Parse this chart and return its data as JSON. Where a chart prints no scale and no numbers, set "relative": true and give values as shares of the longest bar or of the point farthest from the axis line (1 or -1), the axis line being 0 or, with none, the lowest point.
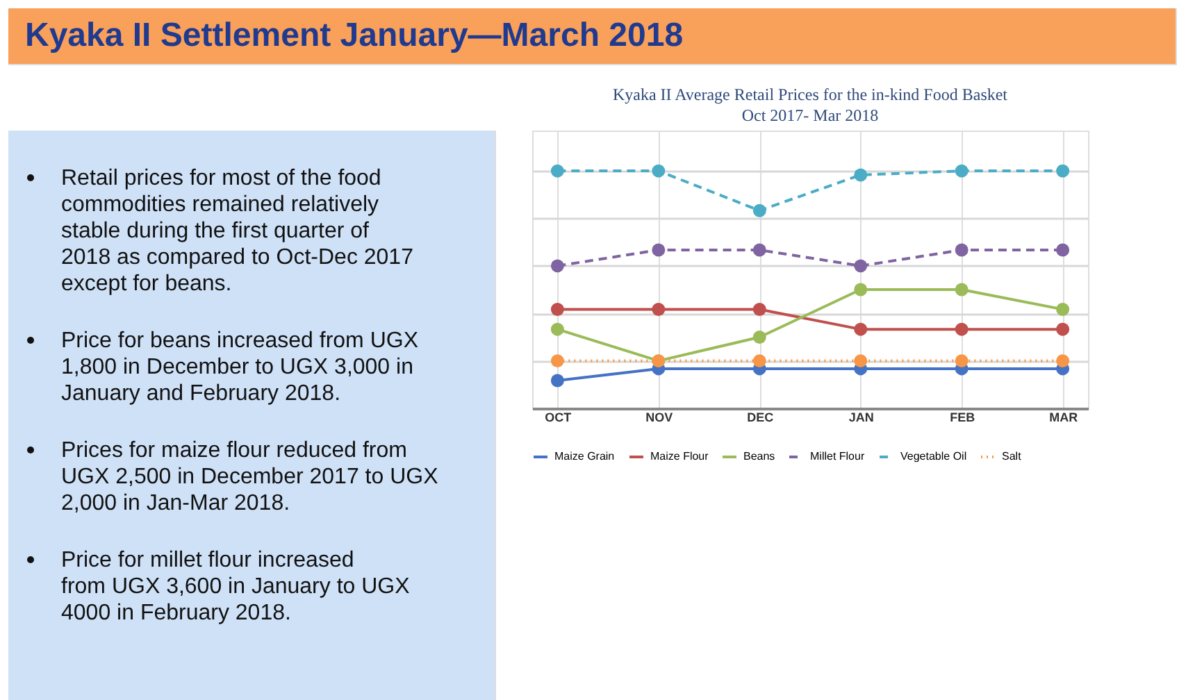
{
  "chart_data": {
    "type": "line",
    "title": "Kyaka II Average Retail Prices for the in-kind Food Basket",
    "subtitle": "Oct 2017- Mar 2018",
    "categories": [
      "OCT",
      "NOV",
      "DEC",
      "JAN",
      "FEB",
      "MAR"
    ],
    "relative": true,
    "grid": true,
    "legend": "bottom",
    "marker": "circle",
    "series": [
      {
        "name": "Maize Grain",
        "color": "#4472c4",
        "line_style": "solid",
        "values": [
          0.117,
          0.167,
          0.167,
          0.167,
          0.167,
          0.167
        ]
      },
      {
        "name": "Maize Flour",
        "color": "#c0504d",
        "line_style": "solid",
        "values": [
          0.417,
          0.417,
          0.417,
          0.333,
          0.333,
          0.333
        ]
      },
      {
        "name": "Beans",
        "color": "#9bbb59",
        "line_style": "solid",
        "values": [
          0.333,
          0.2,
          0.3,
          0.5,
          0.5,
          0.417
        ]
      },
      {
        "name": "Millet Flour",
        "color": "#8064a2",
        "line_style": "dashed",
        "values": [
          0.6,
          0.667,
          0.667,
          0.6,
          0.667,
          0.667
        ]
      },
      {
        "name": "Vegetable Oil",
        "color": "#4bacc6",
        "line_style": "dashed",
        "values": [
          1,
          1,
          0.833,
          0.983,
          1,
          1
        ]
      },
      {
        "name": "Salt",
        "color": "#f79646",
        "line_style": "dotted",
        "values": [
          0.2,
          0.2,
          0.2,
          0.2,
          0.2,
          0.2
        ]
      }
    ],
    "annotations": [
      "Kyaka II Settlement January—March 2018",
      "Retail prices for most of the food commodities remained relatively stable during the first quarter of 2018 as compared to Oct-Dec 2017 except for beans.",
      "Price for beans increased from UGX 1,800 in December to UGX 3,000 in January and February 2018.",
      "Prices for maize flour reduced from UGX 2,500 in December 2017 to UGX 2,000 in Jan-Mar 2018.",
      "Price for millet flour increased from UGX 3,600 in January to UGX 4000 in February 2018."
    ]
  }
}
